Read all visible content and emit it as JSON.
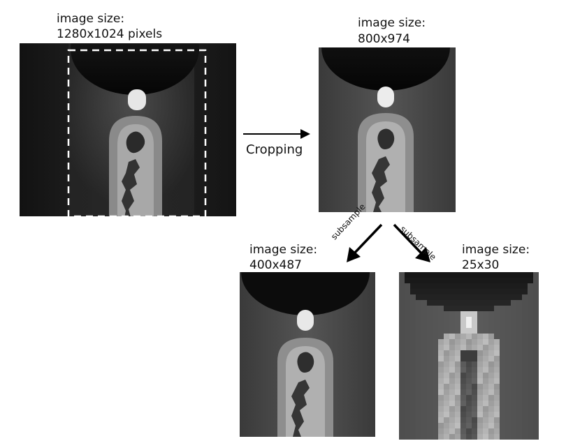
{
  "labels": {
    "original_line1": "image size:",
    "original_line2": "1280x1024 pixels",
    "cropped_line1": "image size:",
    "cropped_line2": "800x974",
    "small_line1": "image size:",
    "small_line2": "400x487",
    "tiny_line1": "image size:",
    "tiny_line2": "25x30"
  },
  "arrows": {
    "crop_label": "Cropping",
    "subsample_left": "subsample",
    "subsample_right": "subsample"
  },
  "colors": {
    "crop_box": "#ffffff",
    "arrow": "#000000",
    "background": "#ffffff"
  }
}
